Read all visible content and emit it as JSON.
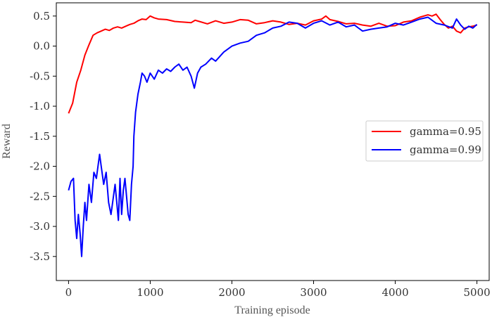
{
  "chart_data": {
    "type": "line",
    "title": "",
    "xlabel": "Training episode",
    "ylabel": "Reward",
    "xlim": [
      -150,
      5150
    ],
    "ylim": [
      -3.9,
      0.72
    ],
    "x_ticks": [
      0,
      1000,
      2000,
      3000,
      4000,
      5000
    ],
    "x_tick_labels": [
      "0",
      "1000",
      "2000",
      "3000",
      "4000",
      "5000"
    ],
    "y_ticks": [
      0.5,
      0.0,
      -0.5,
      -1.0,
      -1.5,
      -2.0,
      -2.5,
      -3.0,
      -3.5
    ],
    "y_tick_labels": [
      "0.5",
      "0.0",
      "-0.5",
      "-1.0",
      "-1.5",
      "-2.0",
      "-2.5",
      "-3.0",
      "-3.5"
    ],
    "grid": false,
    "legend_position": "center-right",
    "series": [
      {
        "name": "gamma=0.95",
        "color": "#ff0000",
        "x": [
          0,
          50,
          100,
          150,
          200,
          250,
          300,
          350,
          400,
          450,
          500,
          550,
          600,
          650,
          700,
          750,
          800,
          850,
          900,
          950,
          1000,
          1050,
          1100,
          1200,
          1300,
          1400,
          1500,
          1550,
          1600,
          1700,
          1800,
          1900,
          2000,
          2100,
          2200,
          2300,
          2400,
          2500,
          2600,
          2700,
          2800,
          2900,
          3000,
          3100,
          3150,
          3200,
          3300,
          3400,
          3500,
          3600,
          3700,
          3800,
          3900,
          4000,
          4100,
          4200,
          4300,
          4400,
          4450,
          4500,
          4550,
          4600,
          4650,
          4700,
          4750,
          4800,
          4850,
          4900,
          4950,
          5000
        ],
        "values": [
          -1.12,
          -0.95,
          -0.6,
          -0.4,
          -0.15,
          0.02,
          0.18,
          0.22,
          0.25,
          0.28,
          0.26,
          0.3,
          0.32,
          0.3,
          0.33,
          0.36,
          0.38,
          0.42,
          0.45,
          0.44,
          0.5,
          0.47,
          0.45,
          0.44,
          0.41,
          0.4,
          0.39,
          0.43,
          0.41,
          0.37,
          0.42,
          0.38,
          0.4,
          0.44,
          0.43,
          0.37,
          0.39,
          0.42,
          0.4,
          0.36,
          0.38,
          0.35,
          0.42,
          0.45,
          0.5,
          0.44,
          0.41,
          0.37,
          0.38,
          0.35,
          0.33,
          0.38,
          0.33,
          0.34,
          0.4,
          0.42,
          0.48,
          0.52,
          0.5,
          0.53,
          0.44,
          0.36,
          0.3,
          0.33,
          0.25,
          0.22,
          0.3,
          0.32,
          0.33,
          0.35
        ]
      },
      {
        "name": "gamma=0.99",
        "color": "#0000ff",
        "x": [
          0,
          30,
          60,
          80,
          100,
          120,
          140,
          160,
          180,
          200,
          220,
          250,
          280,
          310,
          340,
          360,
          380,
          400,
          430,
          460,
          490,
          520,
          550,
          570,
          590,
          610,
          630,
          650,
          670,
          690,
          710,
          730,
          750,
          770,
          790,
          800,
          820,
          850,
          880,
          900,
          930,
          960,
          1000,
          1050,
          1100,
          1150,
          1200,
          1250,
          1300,
          1350,
          1400,
          1450,
          1500,
          1540,
          1580,
          1620,
          1680,
          1750,
          1800,
          1900,
          2000,
          2100,
          2200,
          2300,
          2400,
          2500,
          2600,
          2700,
          2800,
          2900,
          3000,
          3100,
          3200,
          3300,
          3400,
          3500,
          3600,
          3700,
          3800,
          3900,
          4000,
          4100,
          4200,
          4300,
          4400,
          4500,
          4600,
          4700,
          4750,
          4800,
          4850,
          4900,
          4950,
          5000
        ],
        "values": [
          -2.4,
          -2.25,
          -2.2,
          -2.9,
          -3.2,
          -2.8,
          -3.1,
          -3.5,
          -3.0,
          -2.6,
          -2.9,
          -2.3,
          -2.6,
          -2.1,
          -2.2,
          -2.0,
          -1.8,
          -2.0,
          -2.3,
          -2.1,
          -2.6,
          -2.8,
          -2.5,
          -2.3,
          -2.6,
          -2.9,
          -2.2,
          -2.8,
          -2.4,
          -2.2,
          -2.5,
          -2.8,
          -2.9,
          -2.3,
          -2.0,
          -1.5,
          -1.1,
          -0.8,
          -0.6,
          -0.45,
          -0.5,
          -0.6,
          -0.45,
          -0.55,
          -0.4,
          -0.45,
          -0.38,
          -0.42,
          -0.35,
          -0.3,
          -0.4,
          -0.35,
          -0.5,
          -0.7,
          -0.45,
          -0.35,
          -0.3,
          -0.2,
          -0.25,
          -0.1,
          0.0,
          0.05,
          0.08,
          0.18,
          0.22,
          0.3,
          0.33,
          0.4,
          0.38,
          0.3,
          0.38,
          0.42,
          0.35,
          0.4,
          0.32,
          0.35,
          0.25,
          0.28,
          0.3,
          0.32,
          0.38,
          0.35,
          0.4,
          0.45,
          0.48,
          0.38,
          0.35,
          0.3,
          0.45,
          0.35,
          0.28,
          0.33,
          0.3,
          0.36
        ]
      }
    ]
  }
}
